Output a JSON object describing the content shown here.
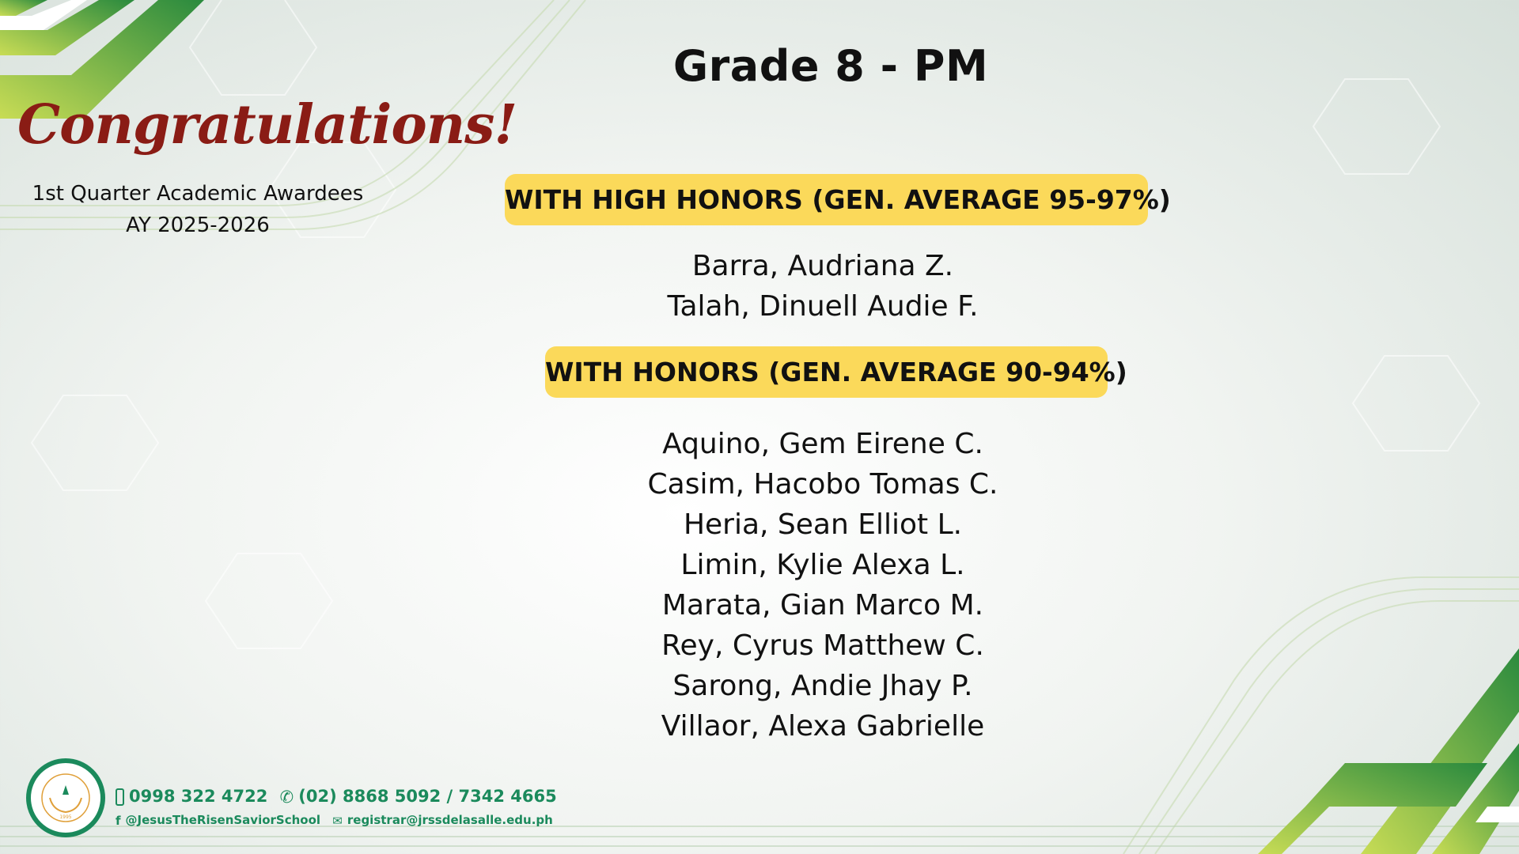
{
  "header": {
    "title": "Grade 8 - PM"
  },
  "intro": {
    "congratulations": "Congratulations!",
    "subtitle": "1st Quarter Academic Awardees",
    "academic_year": "AY 2025-2026"
  },
  "sections": [
    {
      "heading": "WITH HIGH HONORS (GEN. AVERAGE 95-97%)",
      "names": [
        "Barra, Audriana Z.",
        "Talah, Dinuell Audie F."
      ]
    },
    {
      "heading": "WITH HONORS (GEN. AVERAGE 90-94%)",
      "names": [
        "Aquino, Gem Eirene C.",
        "Casim, Hacobo Tomas C.",
        "Heria, Sean Elliot L.",
        "Limin, Kylie Alexa L.",
        "Marata, Gian Marco M.",
        "Rey, Cyrus Matthew C.",
        "Sarong, Andie Jhay P.",
        "Villaor, Alexa Gabrielle"
      ]
    }
  ],
  "footer": {
    "mobile": "0998 322 4722",
    "landline": "(02) 8868 5092 / 7342 4665",
    "facebook": "@JesusTheRisenSaviorSchool",
    "email": "registrar@jrssdelasalle.edu.ph",
    "logo_text": "JESUS THE RISEN SAVIOR SCHOOL INTERNATIONAL",
    "logo_year": "1995"
  },
  "colors": {
    "accent_green": "#1b8a5c",
    "badge_yellow": "#fbd95a",
    "congrats_red": "#8a1c15"
  }
}
